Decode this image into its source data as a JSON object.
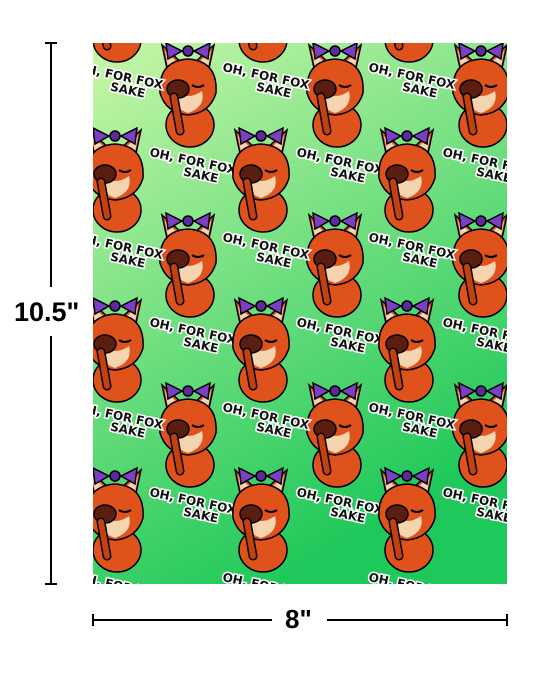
{
  "product": {
    "pattern_text_line1": "OH, FOR FOX",
    "pattern_text_line2": "SAKE",
    "background_gradient": [
      "#c8f7a8",
      "#1fc85a"
    ],
    "fox_color": "#e0521c",
    "bow_color": "#7a3fc4"
  },
  "dimensions": {
    "height_label": "10.5\"",
    "width_label": "8\""
  }
}
